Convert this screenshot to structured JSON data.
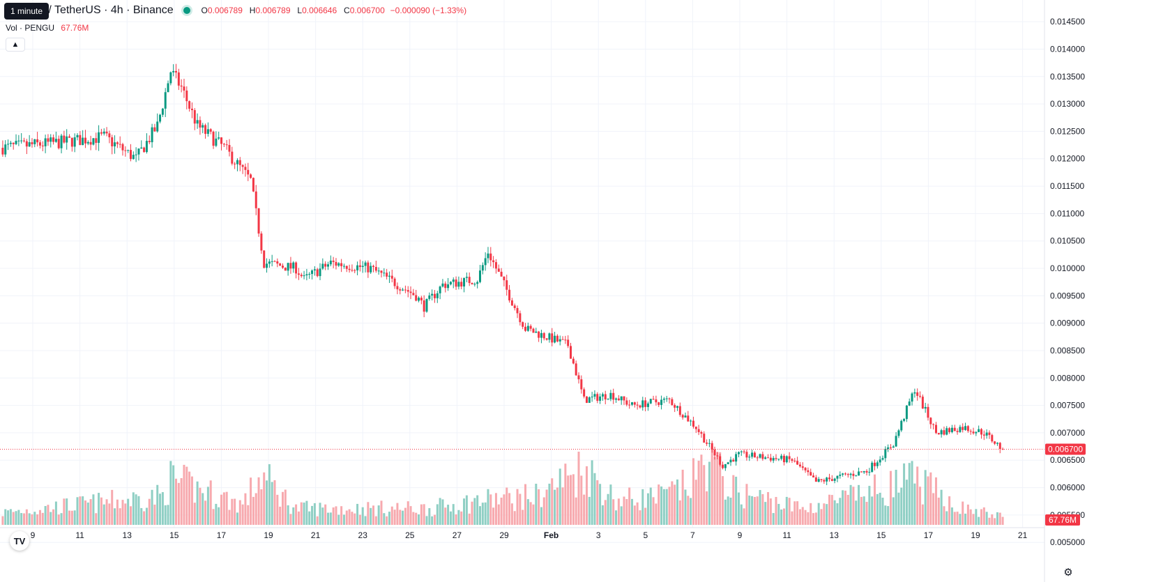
{
  "legend": {
    "tooltip": "1 minute",
    "symbol": "PENGU / TetherUS · 4h · Binance",
    "o_label": "O",
    "o": "0.006789",
    "h_label": "H",
    "h": "0.006789",
    "l_label": "L",
    "l": "0.006646",
    "c_label": "C",
    "c": "0.006700",
    "change": "−0.000090 (−1.33%)"
  },
  "volume": {
    "label": "Vol · PENGU",
    "value": "67.76M"
  },
  "price_badge": "0.006700",
  "volume_badge": "67.76M",
  "logo_text": "TV",
  "colors": {
    "up": "#089981",
    "down": "#f23645",
    "up_vol": "#8fcfc4",
    "down_vol": "#f7a9ae"
  },
  "chart_data": {
    "type": "candlestick",
    "timeframe": "4h",
    "y_ticks": [
      "0.014500",
      "0.014000",
      "0.013500",
      "0.013000",
      "0.012500",
      "0.012000",
      "0.011500",
      "0.011000",
      "0.010500",
      "0.010000",
      "0.009500",
      "0.009000",
      "0.008500",
      "0.008000",
      "0.007500",
      "0.007000",
      "0.006500",
      "0.006000",
      "0.005500",
      "0.005000"
    ],
    "ylim": [
      0.00485,
      0.01468
    ],
    "x_ticks": [
      "9",
      "11",
      "13",
      "15",
      "17",
      "19",
      "21",
      "23",
      "25",
      "27",
      "29",
      "Feb",
      "3",
      "5",
      "7",
      "9",
      "11",
      "13",
      "15",
      "17",
      "19",
      "21"
    ],
    "last_price": 0.0067,
    "anchors": [
      [
        0,
        0.0122
      ],
      [
        22,
        0.0123
      ],
      [
        38,
        0.0124
      ],
      [
        50,
        0.012
      ],
      [
        58,
        0.0126
      ],
      [
        63,
        0.0136
      ],
      [
        67,
        0.0133
      ],
      [
        73,
        0.0126
      ],
      [
        83,
        0.0122
      ],
      [
        93,
        0.0116
      ],
      [
        98,
        0.0101
      ],
      [
        110,
        0.01
      ],
      [
        113,
        0.0098
      ],
      [
        123,
        0.0101
      ],
      [
        138,
        0.01
      ],
      [
        155,
        0.0095
      ],
      [
        158,
        0.0093
      ],
      [
        165,
        0.0097
      ],
      [
        178,
        0.0098
      ],
      [
        182,
        0.0103
      ],
      [
        188,
        0.0097
      ],
      [
        196,
        0.0089
      ],
      [
        212,
        0.0086
      ],
      [
        218,
        0.0076
      ],
      [
        228,
        0.0077
      ],
      [
        236,
        0.0075
      ],
      [
        250,
        0.0076
      ],
      [
        260,
        0.0071
      ],
      [
        270,
        0.0064
      ],
      [
        276,
        0.0066
      ],
      [
        296,
        0.0065
      ],
      [
        305,
        0.0061
      ],
      [
        314,
        0.0062
      ],
      [
        324,
        0.0063
      ],
      [
        334,
        0.0068
      ],
      [
        342,
        0.0078
      ],
      [
        350,
        0.007
      ],
      [
        360,
        0.0071
      ],
      [
        368,
        0.007
      ],
      [
        375,
        0.0067
      ]
    ],
    "volume_profile": [
      [
        0,
        0.15
      ],
      [
        60,
        0.35
      ],
      [
        63,
        0.55
      ],
      [
        90,
        0.25
      ],
      [
        97,
        0.6
      ],
      [
        110,
        0.2
      ],
      [
        160,
        0.2
      ],
      [
        180,
        0.3
      ],
      [
        200,
        0.35
      ],
      [
        218,
        0.7
      ],
      [
        230,
        0.3
      ],
      [
        248,
        0.35
      ],
      [
        258,
        0.5
      ],
      [
        264,
        0.8
      ],
      [
        275,
        0.4
      ],
      [
        300,
        0.2
      ],
      [
        320,
        0.35
      ],
      [
        342,
        0.55
      ],
      [
        360,
        0.2
      ],
      [
        375,
        0.1
      ]
    ]
  }
}
